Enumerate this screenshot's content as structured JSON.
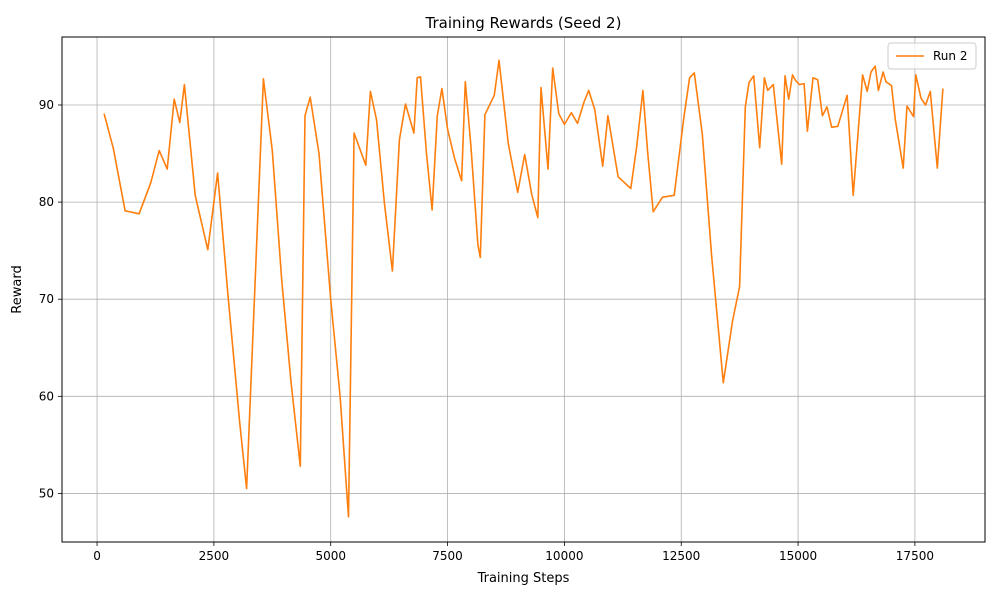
{
  "chart_data": {
    "type": "line",
    "title": "Training Rewards (Seed 2)",
    "xlabel": "Training Steps",
    "ylabel": "Reward",
    "xlim": [
      -750,
      19000
    ],
    "ylim": [
      45,
      97
    ],
    "xticks": [
      0,
      2500,
      5000,
      7500,
      10000,
      12500,
      15000,
      17500
    ],
    "xtick_labels": [
      "0",
      "2500",
      "5000",
      "7500",
      "10000",
      "12500",
      "15000",
      "17500"
    ],
    "yticks": [
      50,
      60,
      70,
      80,
      90
    ],
    "ytick_labels": [
      "50",
      "60",
      "70",
      "80",
      "90"
    ],
    "grid": true,
    "legend_position": "top-right",
    "series": [
      {
        "name": "Run 2",
        "color": "#ff7f0e",
        "x": [
          150,
          350,
          600,
          900,
          1150,
          1330,
          1500,
          1650,
          1770,
          1870,
          2100,
          2370,
          2580,
          2800,
          3050,
          3200,
          3380,
          3560,
          3750,
          3950,
          4150,
          4350,
          4450,
          4560,
          4750,
          5000,
          5200,
          5380,
          5500,
          5750,
          5850,
          5980,
          6150,
          6320,
          6470,
          6600,
          6780,
          6850,
          6920,
          7050,
          7170,
          7280,
          7380,
          7500,
          7650,
          7800,
          7880,
          8000,
          8150,
          8200,
          8300,
          8500,
          8600,
          8800,
          9000,
          9150,
          9300,
          9430,
          9500,
          9650,
          9750,
          9880,
          10000,
          10150,
          10280,
          10420,
          10520,
          10650,
          10820,
          10930,
          11150,
          11420,
          11550,
          11680,
          11780,
          11900,
          12100,
          12350,
          12550,
          12680,
          12780,
          12950,
          13150,
          13400,
          13600,
          13750,
          13870,
          13950,
          14050,
          14180,
          14280,
          14350,
          14470,
          14650,
          14720,
          14800,
          14880,
          14950,
          15030,
          15130,
          15200,
          15320,
          15420,
          15520,
          15620,
          15720,
          15850,
          16050,
          16180,
          16380,
          16480,
          16560,
          16650,
          16720,
          16820,
          16880,
          17000,
          17080,
          17250,
          17330,
          17470,
          17520,
          17630,
          17730,
          17830,
          17980,
          18100
        ],
        "y": [
          89.1,
          85.5,
          79.1,
          78.8,
          82.0,
          85.3,
          83.4,
          90.6,
          88.2,
          92.1,
          80.7,
          75.1,
          83.0,
          70.5,
          57.4,
          50.5,
          71.5,
          92.7,
          85.3,
          72.0,
          61.5,
          52.8,
          88.9,
          90.8,
          85.0,
          70.0,
          60.0,
          47.6,
          87.1,
          83.8,
          91.4,
          88.5,
          79.8,
          72.9,
          86.4,
          90.1,
          87.1,
          92.8,
          92.9,
          85.0,
          79.2,
          88.9,
          91.7,
          87.5,
          84.5,
          82.2,
          92.4,
          85.8,
          75.6,
          74.3,
          89.0,
          91.0,
          94.6,
          86.0,
          81.0,
          84.9,
          80.8,
          78.4,
          91.8,
          83.4,
          93.8,
          89.1,
          88.0,
          89.2,
          88.1,
          90.3,
          91.5,
          89.5,
          83.7,
          88.9,
          82.6,
          81.4,
          85.8,
          91.5,
          85.2,
          79.0,
          80.5,
          80.7,
          88.5,
          92.8,
          93.3,
          87.0,
          74.5,
          61.4,
          67.8,
          71.3,
          89.8,
          92.3,
          93.0,
          85.6,
          92.8,
          91.5,
          92.1,
          83.9,
          93.0,
          90.6,
          93.1,
          92.5,
          92.1,
          92.2,
          87.3,
          92.8,
          92.6,
          88.9,
          89.8,
          87.7,
          87.8,
          91.0,
          80.7,
          93.1,
          91.4,
          93.4,
          94.0,
          91.5,
          93.4,
          92.4,
          92.0,
          88.5,
          83.5,
          89.9,
          88.8,
          93.1,
          90.7,
          90.0,
          91.4,
          83.5,
          91.7
        ]
      }
    ]
  }
}
